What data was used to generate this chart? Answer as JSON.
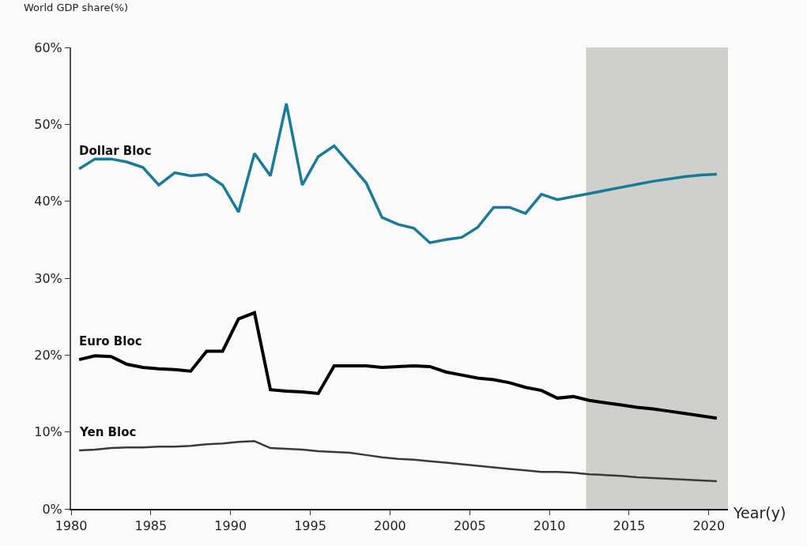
{
  "chart_data": {
    "type": "line",
    "xlabel": "Year(y)",
    "ylabel": "World GDP share(%)",
    "x": [
      1980.5,
      1981.5,
      1982.5,
      1983.5,
      1984.5,
      1985.5,
      1986.5,
      1987.5,
      1988.5,
      1989.5,
      1990.5,
      1991.5,
      1992.5,
      1993.5,
      1994.5,
      1995.5,
      1996.5,
      1997.5,
      1998.5,
      1999.5,
      2000.5,
      2001.5,
      2002.5,
      2003.5,
      2004.5,
      2005.5,
      2006.5,
      2007.5,
      2008.5,
      2009.5,
      2010.5,
      2011.5,
      2012.5,
      2013.5,
      2014.5,
      2015.5,
      2016.5,
      2017.5,
      2018.5,
      2019.5,
      2020.5
    ],
    "series": [
      {
        "name": "Dollar Bloc",
        "color": "#1a7a9a",
        "values": [
          44.2,
          45.5,
          45.5,
          45.1,
          44.4,
          42.1,
          43.7,
          43.3,
          43.5,
          42.1,
          38.6,
          46.2,
          43.3,
          52.7,
          42.1,
          45.8,
          47.2,
          44.8,
          42.4,
          37.9,
          37.0,
          36.5,
          34.6,
          35.0,
          35.3,
          36.6,
          39.2,
          39.2,
          38.4,
          40.9,
          40.2,
          40.6,
          41.0,
          41.4,
          41.8,
          42.2,
          42.6,
          42.9,
          43.2,
          43.4,
          43.5
        ]
      },
      {
        "name": "Euro Bloc",
        "color": "#000000",
        "values": [
          19.4,
          19.9,
          19.8,
          18.8,
          18.4,
          18.2,
          18.1,
          17.9,
          20.5,
          20.5,
          24.7,
          25.5,
          15.5,
          15.3,
          15.2,
          15.0,
          18.6,
          18.6,
          18.6,
          18.4,
          18.5,
          18.6,
          18.5,
          17.8,
          17.4,
          17.0,
          16.8,
          16.4,
          15.8,
          15.4,
          14.4,
          14.6,
          14.1,
          13.8,
          13.5,
          13.2,
          13.0,
          12.7,
          12.4,
          12.1,
          11.8
        ]
      },
      {
        "name": "Yen Bloc",
        "color": "#3a3a3a",
        "values": [
          7.6,
          7.7,
          7.9,
          8.0,
          8.0,
          8.1,
          8.1,
          8.2,
          8.4,
          8.5,
          8.7,
          8.8,
          7.9,
          7.8,
          7.7,
          7.5,
          7.4,
          7.3,
          7.0,
          6.7,
          6.5,
          6.4,
          6.2,
          6.0,
          5.8,
          5.6,
          5.4,
          5.2,
          5.0,
          4.8,
          4.8,
          4.7,
          4.5,
          4.4,
          4.3,
          4.1,
          4.0,
          3.9,
          3.8,
          3.7,
          3.6
        ]
      }
    ],
    "xlim": [
      1980,
      2021.2
    ],
    "xticks": [
      1980,
      1985,
      1990,
      1995,
      2000,
      2005,
      2010,
      2015,
      2020
    ],
    "ylim": [
      0,
      60
    ],
    "yticks": [
      {
        "value": 0,
        "label": "0%"
      },
      {
        "value": 10,
        "label": "10%"
      },
      {
        "value": 20,
        "label": "20%"
      },
      {
        "value": 30,
        "label": "30%"
      },
      {
        "value": 40,
        "label": "40%"
      },
      {
        "value": 50,
        "label": "50%"
      },
      {
        "value": 60,
        "label": "60%"
      }
    ],
    "bands": [
      {
        "axis": "x",
        "from": 2012.3,
        "to": 2021.2,
        "color": "#cfd0cb"
      }
    ],
    "grid": false,
    "legend": false,
    "marker": "none",
    "line_style": "solid"
  }
}
